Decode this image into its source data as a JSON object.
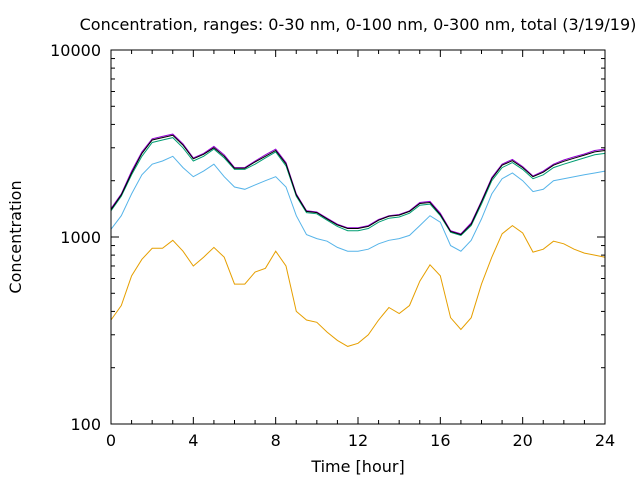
{
  "chart_data": {
    "type": "line",
    "title": "Concentration, ranges: 0-30 nm, 0-100 nm, 0-300 nm, total (3/19/19)",
    "xlabel": "Time [hour]",
    "ylabel": "Concentration",
    "xlim": [
      0,
      24
    ],
    "ylim": [
      100,
      10000
    ],
    "yscale": "log",
    "grid": false,
    "x_ticks": [
      "0",
      "4",
      "8",
      "12",
      "16",
      "20",
      "24"
    ],
    "y_ticks": [
      "100",
      "1000",
      "10000"
    ],
    "x": [
      0,
      0.5,
      1,
      1.5,
      2,
      2.5,
      3,
      3.5,
      4,
      4.5,
      5,
      5.5,
      6,
      6.5,
      7,
      7.5,
      8,
      8.5,
      9,
      9.5,
      10,
      10.5,
      11,
      11.5,
      12,
      12.5,
      13,
      13.5,
      14,
      14.5,
      15,
      15.5,
      16,
      16.5,
      17,
      17.5,
      18,
      18.5,
      19,
      19.5,
      20,
      20.5,
      21,
      21.5,
      22,
      22.5,
      23,
      23.5,
      24
    ],
    "series": [
      {
        "color": "#e69f00",
        "values": [
          360,
          430,
          620,
          760,
          870,
          870,
          960,
          840,
          700,
          780,
          880,
          780,
          560,
          560,
          650,
          680,
          840,
          700,
          400,
          360,
          350,
          310,
          280,
          260,
          270,
          300,
          360,
          420,
          390,
          430,
          580,
          710,
          620,
          370,
          320,
          370,
          560,
          780,
          1040,
          1150,
          1050,
          830,
          860,
          950,
          920,
          860,
          820,
          800,
          780
        ]
      },
      {
        "color": "#56b4e9",
        "values": [
          1100,
          1300,
          1700,
          2150,
          2450,
          2550,
          2700,
          2350,
          2100,
          2250,
          2450,
          2100,
          1850,
          1800,
          1900,
          2000,
          2100,
          1850,
          1300,
          1030,
          980,
          950,
          880,
          840,
          840,
          860,
          920,
          960,
          980,
          1020,
          1150,
          1300,
          1200,
          900,
          840,
          960,
          1250,
          1700,
          2050,
          2200,
          2000,
          1750,
          1800,
          2000,
          2050,
          2100,
          2150,
          2200,
          2250
        ]
      },
      {
        "color": "#009e73",
        "values": [
          1380,
          1650,
          2150,
          2700,
          3200,
          3300,
          3400,
          3000,
          2550,
          2700,
          2950,
          2650,
          2300,
          2300,
          2450,
          2650,
          2850,
          2400,
          1650,
          1350,
          1330,
          1230,
          1140,
          1080,
          1080,
          1110,
          1200,
          1260,
          1280,
          1340,
          1480,
          1500,
          1300,
          1060,
          1020,
          1150,
          1500,
          2000,
          2350,
          2500,
          2300,
          2050,
          2150,
          2350,
          2450,
          2550,
          2650,
          2750,
          2800
        ]
      },
      {
        "color": "#9400d3",
        "values": [
          1420,
          1700,
          2250,
          2850,
          3350,
          3450,
          3550,
          3150,
          2650,
          2800,
          3050,
          2750,
          2350,
          2350,
          2550,
          2750,
          2950,
          2500,
          1700,
          1380,
          1360,
          1260,
          1170,
          1120,
          1120,
          1150,
          1240,
          1300,
          1320,
          1380,
          1530,
          1550,
          1340,
          1080,
          1040,
          1190,
          1560,
          2080,
          2450,
          2600,
          2380,
          2120,
          2250,
          2450,
          2580,
          2680,
          2780,
          2900,
          2950
        ]
      },
      {
        "color": "#000000",
        "values": [
          1400,
          1680,
          2200,
          2800,
          3300,
          3400,
          3500,
          3100,
          2620,
          2770,
          3000,
          2700,
          2330,
          2330,
          2520,
          2700,
          2900,
          2460,
          1680,
          1370,
          1350,
          1250,
          1160,
          1110,
          1110,
          1140,
          1230,
          1290,
          1310,
          1370,
          1510,
          1530,
          1320,
          1070,
          1030,
          1170,
          1540,
          2050,
          2420,
          2560,
          2350,
          2100,
          2220,
          2420,
          2540,
          2640,
          2740,
          2850,
          2900
        ]
      }
    ]
  }
}
